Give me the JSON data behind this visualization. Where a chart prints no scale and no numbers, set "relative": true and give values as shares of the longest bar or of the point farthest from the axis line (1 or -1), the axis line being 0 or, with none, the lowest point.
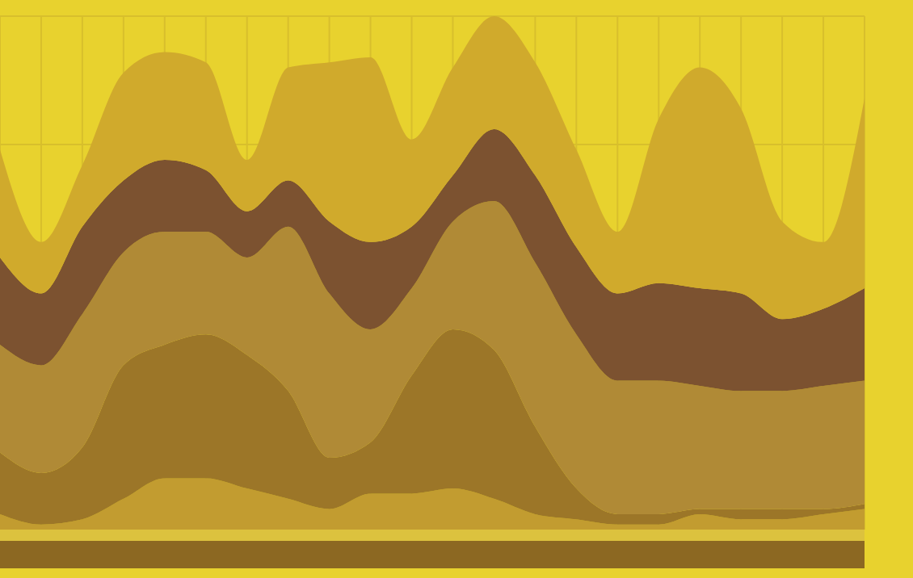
{
  "chart_data": {
    "type": "area",
    "relative": true,
    "stacked": true,
    "grid": true,
    "categories": [
      null,
      null,
      null,
      null,
      null,
      null,
      null,
      null,
      null,
      null,
      null,
      null,
      null,
      null,
      null,
      null,
      null,
      null,
      null,
      null,
      null,
      null
    ],
    "series": [
      {
        "color": "#c29c30",
        "values": [
          0.03,
          0.01,
          0.02,
          0.06,
          0.1,
          0.1,
          0.08,
          0.06,
          0.04,
          0.07,
          0.07,
          0.08,
          0.06,
          0.03,
          0.02,
          0.01,
          0.01,
          0.03,
          0.02,
          0.02,
          0.03,
          0.04
        ]
      },
      {
        "color": "#9c7628",
        "values": [
          0.12,
          0.1,
          0.14,
          0.26,
          0.26,
          0.28,
          0.26,
          0.21,
          0.1,
          0.1,
          0.23,
          0.31,
          0.29,
          0.17,
          0.06,
          0.02,
          0.02,
          0.01,
          0.02,
          0.02,
          0.01,
          0.01
        ]
      },
      {
        "color": "#b08a36",
        "values": [
          0.21,
          0.21,
          0.26,
          0.22,
          0.22,
          0.2,
          0.19,
          0.32,
          0.32,
          0.22,
          0.17,
          0.21,
          0.29,
          0.32,
          0.3,
          0.26,
          0.26,
          0.24,
          0.23,
          0.23,
          0.24,
          0.24
        ]
      },
      {
        "color": "#7c5230",
        "values": [
          0.17,
          0.14,
          0.17,
          0.14,
          0.14,
          0.12,
          0.09,
          0.09,
          0.14,
          0.17,
          0.12,
          0.09,
          0.14,
          0.17,
          0.17,
          0.17,
          0.19,
          0.19,
          0.19,
          0.14,
          0.15,
          0.18
        ]
      },
      {
        "color": "#d0aa2c",
        "values": [
          0.21,
          0.1,
          0.12,
          0.21,
          0.21,
          0.21,
          0.1,
          0.22,
          0.31,
          0.36,
          0.17,
          0.21,
          0.22,
          0.22,
          0.19,
          0.12,
          0.32,
          0.43,
          0.36,
          0.19,
          0.13,
          0.37
        ]
      }
    ]
  }
}
